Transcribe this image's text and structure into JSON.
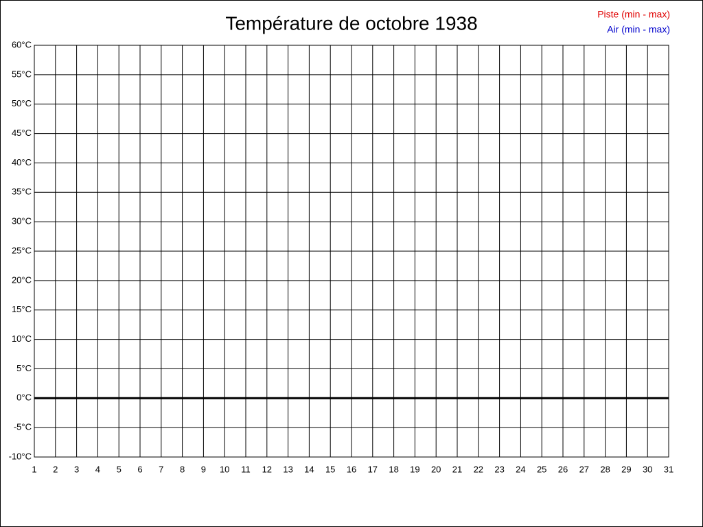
{
  "chart_data": {
    "type": "line",
    "title": "Température de octobre 1938",
    "series": [
      {
        "name": "Piste (min - max)",
        "color": "#e00000"
      },
      {
        "name": "Air (min - max)",
        "color": "#0000cc"
      }
    ],
    "xlim": [
      1,
      31
    ],
    "xticks": [
      1,
      2,
      3,
      4,
      5,
      6,
      7,
      8,
      9,
      10,
      11,
      12,
      13,
      14,
      15,
      16,
      17,
      18,
      19,
      20,
      21,
      22,
      23,
      24,
      25,
      26,
      27,
      28,
      29,
      30,
      31
    ],
    "ylim": [
      -10,
      60
    ],
    "yticks": [
      {
        "value": -10,
        "label": "-10°C"
      },
      {
        "value": -5,
        "label": "-5°C"
      },
      {
        "value": 0,
        "label": "0°C"
      },
      {
        "value": 5,
        "label": "5°C"
      },
      {
        "value": 10,
        "label": "10°C"
      },
      {
        "value": 15,
        "label": "15°C"
      },
      {
        "value": 20,
        "label": "20°C"
      },
      {
        "value": 25,
        "label": "25°C"
      },
      {
        "value": 30,
        "label": "30°C"
      },
      {
        "value": 35,
        "label": "35°C"
      },
      {
        "value": 40,
        "label": "40°C"
      },
      {
        "value": 45,
        "label": "45°C"
      },
      {
        "value": 50,
        "label": "50°C"
      },
      {
        "value": 55,
        "label": "55°C"
      },
      {
        "value": 60,
        "label": "60°C"
      }
    ],
    "grid": true,
    "legend": "top-right"
  }
}
